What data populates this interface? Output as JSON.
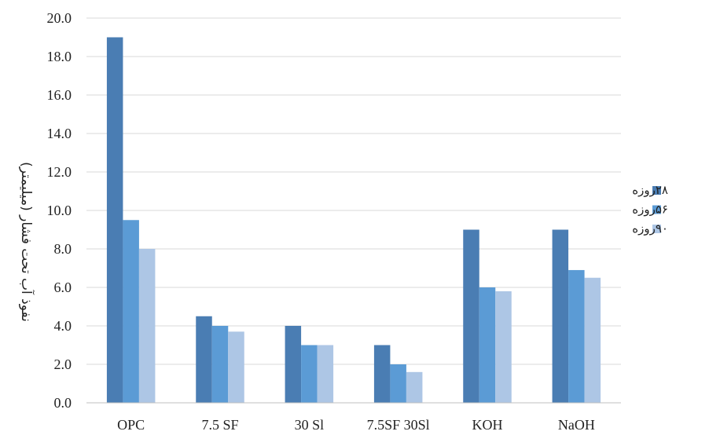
{
  "chart_data": {
    "type": "bar",
    "title": "",
    "xlabel": "",
    "ylabel": "نفوذ آب تحت فشار (میلیمتر)",
    "ylim": [
      0,
      20
    ],
    "ytick_step": 2,
    "ytick_labels": [
      "0.0",
      "2.0",
      "4.0",
      "6.0",
      "8.0",
      "10.0",
      "12.0",
      "14.0",
      "16.0",
      "18.0",
      "20.0"
    ],
    "grid": true,
    "legend_position": "right",
    "categories": [
      "OPC",
      "7.5 SF",
      "30 Sl",
      "7.5SF 30Sl",
      "KOH",
      "NaOH"
    ],
    "series": [
      {
        "name": "۲۸روزه",
        "color": "#4a7db3",
        "values": [
          19.0,
          4.5,
          4.0,
          3.0,
          9.0,
          9.0
        ]
      },
      {
        "name": "۵۶روزه",
        "color": "#5b9bd5",
        "values": [
          9.5,
          4.0,
          3.0,
          2.0,
          6.0,
          6.9
        ]
      },
      {
        "name": "۹۰روزه",
        "color": "#adc6e5",
        "values": [
          8.0,
          3.7,
          3.0,
          1.6,
          5.8,
          6.5
        ]
      }
    ]
  }
}
